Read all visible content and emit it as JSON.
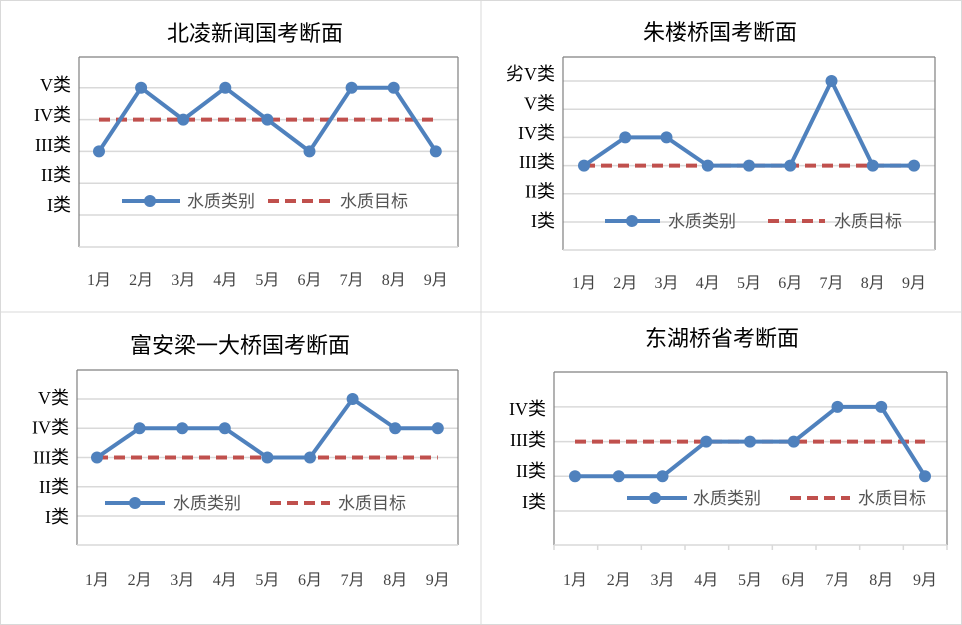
{
  "colors": {
    "series": "#4f81bd",
    "target": "#c0504d",
    "grid": "#d9d9d9",
    "axis": "#808080",
    "panel_border": "#d9d9d9"
  },
  "chart_data": [
    {
      "type": "line",
      "title": "北凌新闻国考断面",
      "categories": [
        "1月",
        "2月",
        "3月",
        "4月",
        "5月",
        "6月",
        "7月",
        "8月",
        "9月"
      ],
      "y_categories": [
        "I类",
        "II类",
        "III类",
        "IV类",
        "V类"
      ],
      "series": [
        {
          "name": "水质类别",
          "style": "solid-marker",
          "values": [
            "III类",
            "V类",
            "IV类",
            "V类",
            "IV类",
            "III类",
            "V类",
            "V类",
            "III类"
          ]
        },
        {
          "name": "水质目标",
          "style": "dashed",
          "values": [
            "IV类",
            "IV类",
            "IV类",
            "IV类",
            "IV类",
            "IV类",
            "IV类",
            "IV类",
            "IV类"
          ]
        }
      ],
      "grid": true,
      "legend": "inside-bottom"
    },
    {
      "type": "line",
      "title": "朱楼桥国考断面",
      "categories": [
        "1月",
        "2月",
        "3月",
        "4月",
        "5月",
        "6月",
        "7月",
        "8月",
        "9月"
      ],
      "y_categories": [
        "I类",
        "II类",
        "III类",
        "IV类",
        "V类",
        "劣V类"
      ],
      "series": [
        {
          "name": "水质类别",
          "style": "solid-marker",
          "values": [
            "III类",
            "IV类",
            "IV类",
            "III类",
            "III类",
            "III类",
            "劣V类",
            "III类",
            "III类"
          ]
        },
        {
          "name": "水质目标",
          "style": "dashed",
          "values": [
            "III类",
            "III类",
            "III类",
            "III类",
            "III类",
            "III类",
            "III类",
            "III类",
            "III类"
          ]
        }
      ],
      "grid": true,
      "legend": "inside-bottom"
    },
    {
      "type": "line",
      "title": "富安梁一大桥国考断面",
      "categories": [
        "1月",
        "2月",
        "3月",
        "4月",
        "5月",
        "6月",
        "7月",
        "8月",
        "9月"
      ],
      "y_categories": [
        "I类",
        "II类",
        "III类",
        "IV类",
        "V类"
      ],
      "series": [
        {
          "name": "水质类别",
          "style": "solid-marker",
          "values": [
            "III类",
            "IV类",
            "IV类",
            "IV类",
            "III类",
            "III类",
            "V类",
            "IV类",
            "IV类"
          ]
        },
        {
          "name": "水质目标",
          "style": "dashed",
          "values": [
            "III类",
            "III类",
            "III类",
            "III类",
            "III类",
            "III类",
            "III类",
            "III类",
            "III类"
          ]
        }
      ],
      "grid": true,
      "legend": "inside-bottom"
    },
    {
      "type": "line",
      "title": "东湖桥省考断面",
      "categories": [
        "1月",
        "2月",
        "3月",
        "4月",
        "5月",
        "6月",
        "7月",
        "8月",
        "9月"
      ],
      "y_categories": [
        "I类",
        "II类",
        "III类",
        "IV类"
      ],
      "series": [
        {
          "name": "水质类别",
          "style": "solid-marker",
          "values": [
            "II类",
            "II类",
            "II类",
            "III类",
            "III类",
            "III类",
            "IV类",
            "IV类",
            "II类"
          ]
        },
        {
          "name": "水质目标",
          "style": "dashed",
          "values": [
            "III类",
            "III类",
            "III类",
            "III类",
            "III类",
            "III类",
            "III类",
            "III类",
            "III类"
          ]
        }
      ],
      "grid": true,
      "legend": "inside-bottom"
    }
  ]
}
